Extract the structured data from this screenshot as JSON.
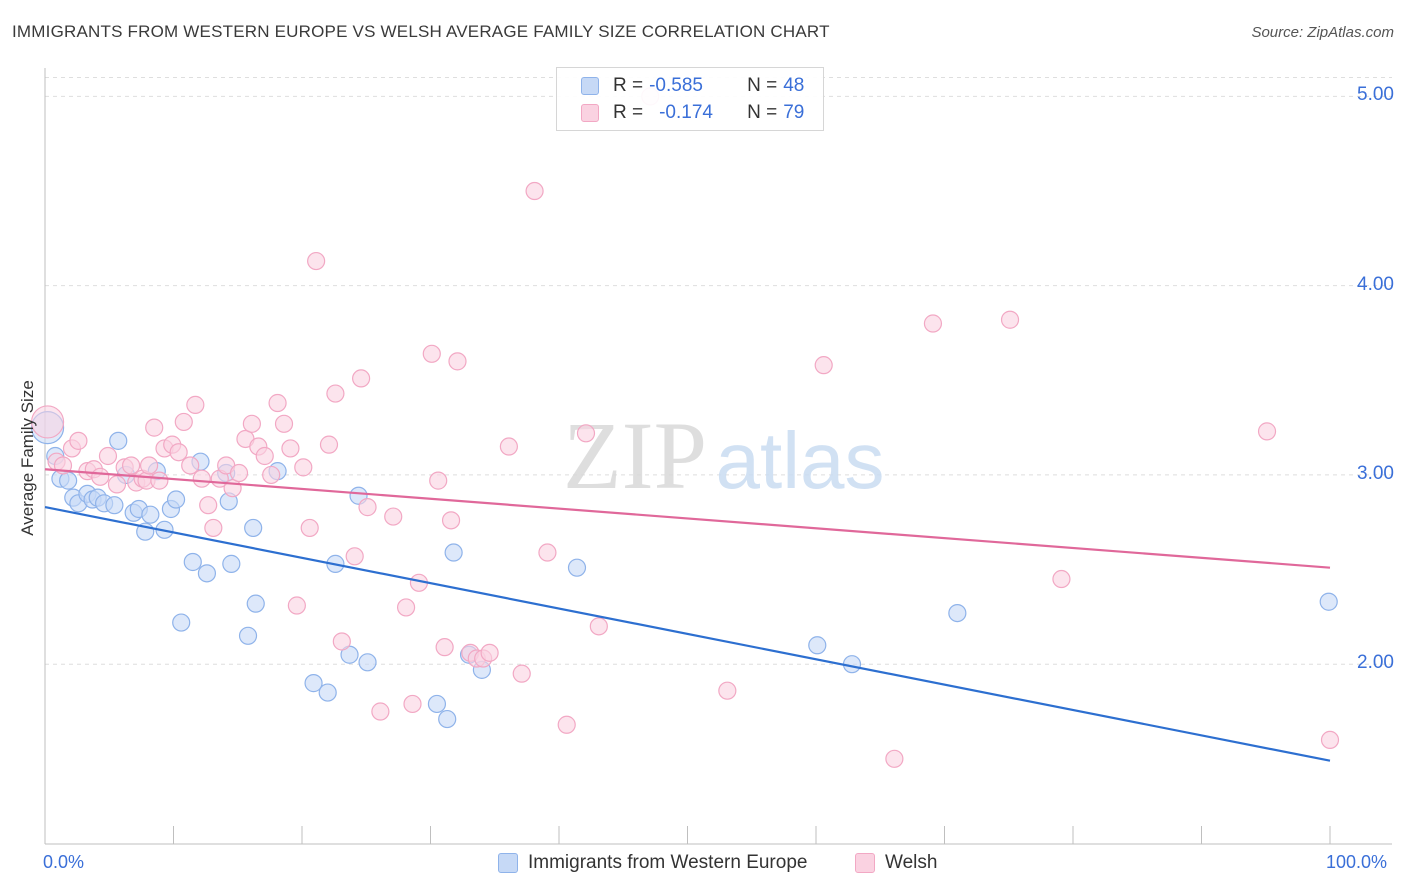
{
  "title": "IMMIGRANTS FROM WESTERN EUROPE VS WELSH AVERAGE FAMILY SIZE CORRELATION CHART",
  "source": "Source: ZipAtlas.com",
  "watermark": {
    "zip": "ZIP",
    "atlas": "atlas"
  },
  "legend_stats": [
    {
      "r_label": "R =",
      "r_value": "-0.585",
      "n_label": "N =",
      "n_value": "48"
    },
    {
      "r_label": "R =",
      "r_value": "-0.174",
      "n_label": "N =",
      "n_value": "79"
    }
  ],
  "chart_data": {
    "type": "scatter",
    "title": "IMMIGRANTS FROM WESTERN EUROPE VS WELSH AVERAGE FAMILY SIZE CORRELATION CHART",
    "xlabel": "",
    "ylabel": "Average Family Size",
    "xlim": [
      0,
      100
    ],
    "ylim": [
      1.05,
      5.15
    ],
    "x_tick_labels": [
      "0.0%",
      "100.0%"
    ],
    "y_ticks": [
      2.0,
      3.0,
      4.0,
      5.0
    ],
    "y_tick_labels": [
      "2.00",
      "3.00",
      "4.00",
      "5.00"
    ],
    "grid": "horizontal-dashed",
    "legend_placement": "top-center",
    "series": [
      {
        "name": "Immigrants from Western Europe",
        "color": "#8fb3ea",
        "fill": "#c6d9f6",
        "line_color": "#2d6fd0",
        "trend": [
          [
            0,
            2.83
          ],
          [
            100,
            1.49
          ]
        ],
        "points": [
          [
            0.2,
            3.25
          ],
          [
            0.8,
            3.1
          ],
          [
            1.2,
            2.98
          ],
          [
            1.8,
            2.97
          ],
          [
            2.2,
            2.88
          ],
          [
            2.6,
            2.85
          ],
          [
            3.3,
            2.9
          ],
          [
            3.7,
            2.87
          ],
          [
            4.1,
            2.88
          ],
          [
            4.6,
            2.85
          ],
          [
            5.4,
            2.84
          ],
          [
            5.7,
            3.18
          ],
          [
            6.3,
            3.0
          ],
          [
            6.9,
            2.8
          ],
          [
            7.3,
            2.82
          ],
          [
            7.8,
            2.7
          ],
          [
            8.2,
            2.79
          ],
          [
            8.7,
            3.02
          ],
          [
            9.3,
            2.71
          ],
          [
            9.8,
            2.82
          ],
          [
            10.2,
            2.87
          ],
          [
            10.6,
            2.22
          ],
          [
            11.5,
            2.54
          ],
          [
            12.1,
            3.07
          ],
          [
            12.6,
            2.48
          ],
          [
            14.1,
            3.01
          ],
          [
            14.5,
            2.53
          ],
          [
            14.3,
            2.86
          ],
          [
            15.8,
            2.15
          ],
          [
            16.2,
            2.72
          ],
          [
            16.4,
            2.32
          ],
          [
            18.1,
            3.02
          ],
          [
            20.9,
            1.9
          ],
          [
            22.0,
            1.85
          ],
          [
            22.6,
            2.53
          ],
          [
            23.7,
            2.05
          ],
          [
            24.4,
            2.89
          ],
          [
            25.1,
            2.01
          ],
          [
            30.5,
            1.79
          ],
          [
            31.3,
            1.71
          ],
          [
            31.8,
            2.59
          ],
          [
            33.0,
            2.05
          ],
          [
            34.0,
            1.97
          ],
          [
            41.4,
            2.51
          ],
          [
            60.1,
            2.1
          ],
          [
            62.8,
            2.0
          ],
          [
            71.0,
            2.27
          ],
          [
            99.9,
            2.33
          ]
        ]
      },
      {
        "name": "Welsh",
        "color": "#f2a8c4",
        "fill": "#fad2e1",
        "line_color": "#e0689a",
        "trend": [
          [
            0,
            3.03
          ],
          [
            100,
            2.51
          ]
        ],
        "points": [
          [
            0.2,
            3.28
          ],
          [
            0.9,
            3.07
          ],
          [
            1.4,
            3.05
          ],
          [
            2.1,
            3.14
          ],
          [
            2.6,
            3.18
          ],
          [
            3.3,
            3.02
          ],
          [
            3.8,
            3.03
          ],
          [
            4.3,
            2.99
          ],
          [
            4.9,
            3.1
          ],
          [
            5.6,
            2.95
          ],
          [
            6.2,
            3.04
          ],
          [
            6.7,
            3.05
          ],
          [
            7.1,
            2.96
          ],
          [
            7.6,
            2.98
          ],
          [
            7.9,
            2.97
          ],
          [
            8.1,
            3.05
          ],
          [
            8.5,
            3.25
          ],
          [
            8.9,
            2.97
          ],
          [
            9.3,
            3.14
          ],
          [
            9.9,
            3.16
          ],
          [
            10.4,
            3.12
          ],
          [
            10.8,
            3.28
          ],
          [
            11.3,
            3.05
          ],
          [
            11.7,
            3.37
          ],
          [
            12.2,
            2.98
          ],
          [
            12.7,
            2.84
          ],
          [
            13.1,
            2.72
          ],
          [
            13.6,
            2.98
          ],
          [
            14.1,
            3.05
          ],
          [
            14.6,
            2.93
          ],
          [
            15.1,
            3.01
          ],
          [
            15.6,
            3.19
          ],
          [
            16.1,
            3.27
          ],
          [
            16.6,
            3.15
          ],
          [
            17.1,
            3.1
          ],
          [
            17.6,
            3.0
          ],
          [
            18.1,
            3.38
          ],
          [
            18.6,
            3.27
          ],
          [
            19.1,
            3.14
          ],
          [
            19.6,
            2.31
          ],
          [
            20.1,
            3.04
          ],
          [
            20.6,
            2.72
          ],
          [
            21.1,
            4.13
          ],
          [
            22.1,
            3.16
          ],
          [
            22.6,
            3.43
          ],
          [
            23.1,
            2.12
          ],
          [
            24.1,
            2.57
          ],
          [
            24.6,
            3.51
          ],
          [
            25.1,
            2.83
          ],
          [
            26.1,
            1.75
          ],
          [
            27.1,
            2.78
          ],
          [
            28.1,
            2.3
          ],
          [
            28.6,
            1.79
          ],
          [
            29.1,
            2.43
          ],
          [
            30.1,
            3.64
          ],
          [
            30.6,
            2.97
          ],
          [
            31.1,
            2.09
          ],
          [
            31.6,
            2.76
          ],
          [
            32.1,
            3.6
          ],
          [
            33.1,
            2.06
          ],
          [
            33.6,
            2.03
          ],
          [
            34.1,
            2.03
          ],
          [
            34.6,
            2.06
          ],
          [
            36.1,
            3.15
          ],
          [
            37.1,
            1.95
          ],
          [
            38.1,
            4.5
          ],
          [
            39.1,
            2.59
          ],
          [
            40.6,
            1.68
          ],
          [
            42.1,
            3.22
          ],
          [
            43.1,
            2.2
          ],
          [
            47.1,
            5.0
          ],
          [
            53.1,
            1.86
          ],
          [
            60.6,
            3.58
          ],
          [
            66.1,
            1.5
          ],
          [
            69.1,
            3.8
          ],
          [
            75.1,
            3.82
          ],
          [
            79.1,
            2.45
          ],
          [
            95.1,
            3.23
          ],
          [
            100.0,
            1.6
          ]
        ]
      }
    ]
  }
}
